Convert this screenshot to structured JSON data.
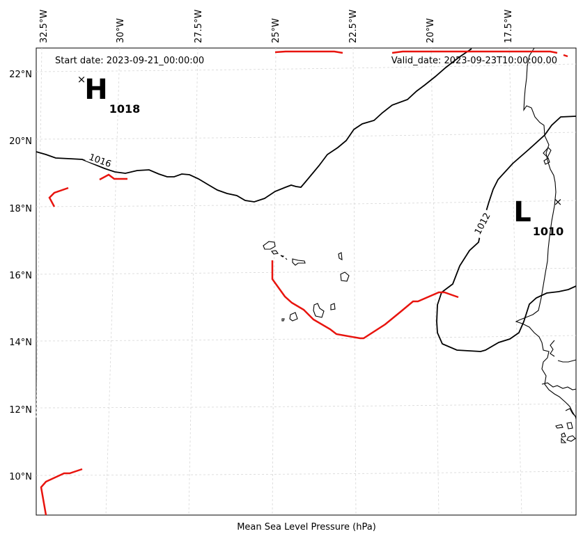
{
  "map": {
    "start_date_label": "Start date: 2023-09-21_00:00:00",
    "valid_date_label": "Valid_date: 2023-09-23T10:00:00.00",
    "footer_label": "Mean Sea Level Pressure (hPa)",
    "lon_labels": [
      "32.5°W",
      "30°W",
      "27.5°W",
      "25°W",
      "22.5°W",
      "20°W",
      "17.5°W"
    ],
    "lat_labels": [
      "22°N",
      "20°N",
      "18°N",
      "16°N",
      "14°N",
      "12°N",
      "10°N"
    ],
    "high": {
      "symbol": "H",
      "value": "1018"
    },
    "low": {
      "symbol": "L",
      "value": "1010"
    },
    "contour_labels": [
      "1016",
      "1012"
    ],
    "colors": {
      "isobar": "#000000",
      "front": "#e8140e",
      "grid": "#d0d0d0",
      "land": "#ffffff"
    }
  }
}
